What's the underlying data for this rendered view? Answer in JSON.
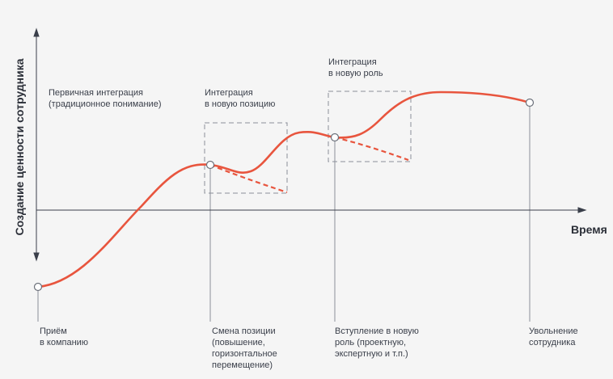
{
  "axes": {
    "y_title": "Создание ценности сотрудника",
    "x_title": "Время"
  },
  "annotations": {
    "primary_integration": "Первичная интеграция\n(традиционное понимание)",
    "integration_new_position": "Интеграция\nв новую позицию",
    "integration_new_role": "Интеграция\nв новую роль"
  },
  "events": [
    "Приём\nв компанию",
    "Смена позиции\n(повышение,\nгоризонтальное\nперемещение)",
    "Вступление в новую\nроль (проектную,\nэкспертную и т.п.)",
    "Увольнение\nсотрудника"
  ],
  "colors": {
    "curve": "#e8553e",
    "axis": "#3a3f4a",
    "guide": "#8a8f99",
    "box": "#8a8f99",
    "background": "#f5f5f5"
  }
}
